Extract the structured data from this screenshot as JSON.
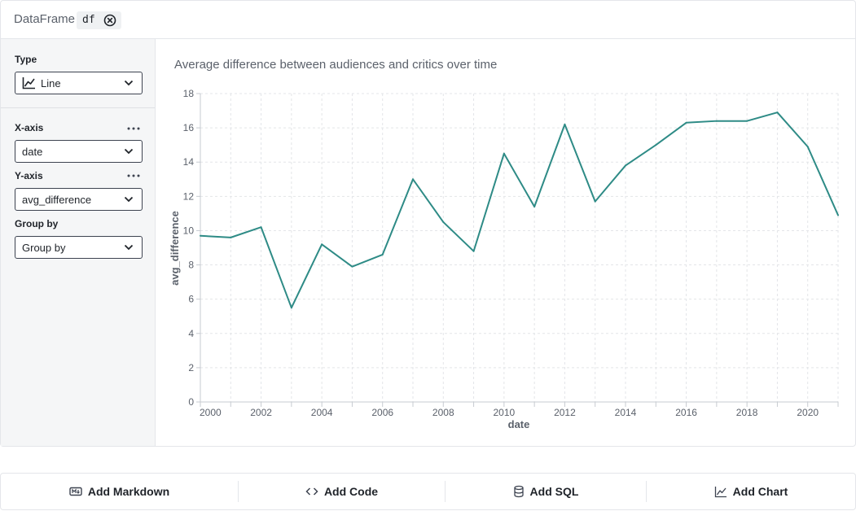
{
  "header": {
    "label": "DataFrame",
    "df_name": "df",
    "close_icon": "close-circle-icon"
  },
  "sidebar": {
    "type_label": "Type",
    "type_value": "Line",
    "type_icon": "line-chart-icon",
    "x_label": "X-axis",
    "x_value": "date",
    "y_label": "Y-axis",
    "y_value": "avg_difference",
    "group_label": "Group by",
    "group_value": "Group by",
    "more_icon": "more-horizontal-icon",
    "dropdown_icon": "chevron-down-icon"
  },
  "chart_data": {
    "type": "line",
    "title": "Average difference between audiences and critics over time",
    "xlabel": "date",
    "ylabel": "avg_difference",
    "x": [
      2000,
      2001,
      2002,
      2003,
      2004,
      2005,
      2006,
      2007,
      2008,
      2009,
      2010,
      2011,
      2012,
      2013,
      2014,
      2015,
      2016,
      2017,
      2018,
      2019,
      2020,
      2021
    ],
    "values": [
      9.7,
      9.6,
      10.2,
      5.5,
      9.2,
      7.9,
      8.6,
      13.0,
      10.5,
      8.8,
      14.5,
      11.4,
      16.2,
      11.7,
      13.8,
      15.0,
      16.3,
      16.4,
      16.4,
      16.9,
      14.9,
      10.9
    ],
    "xticks": [
      "2000",
      "2002",
      "2004",
      "2006",
      "2008",
      "2010",
      "2012",
      "2014",
      "2016",
      "2018",
      "2020"
    ],
    "yticks": [
      "0",
      "2",
      "4",
      "6",
      "8",
      "10",
      "12",
      "14",
      "16",
      "18"
    ],
    "xlim": [
      2000,
      2021
    ],
    "ylim": [
      0,
      18
    ],
    "grid": true,
    "color": "#2e8b86"
  },
  "footer": {
    "add_markdown": "Add Markdown",
    "add_code": "Add Code",
    "add_sql": "Add SQL",
    "add_chart": "Add Chart"
  }
}
